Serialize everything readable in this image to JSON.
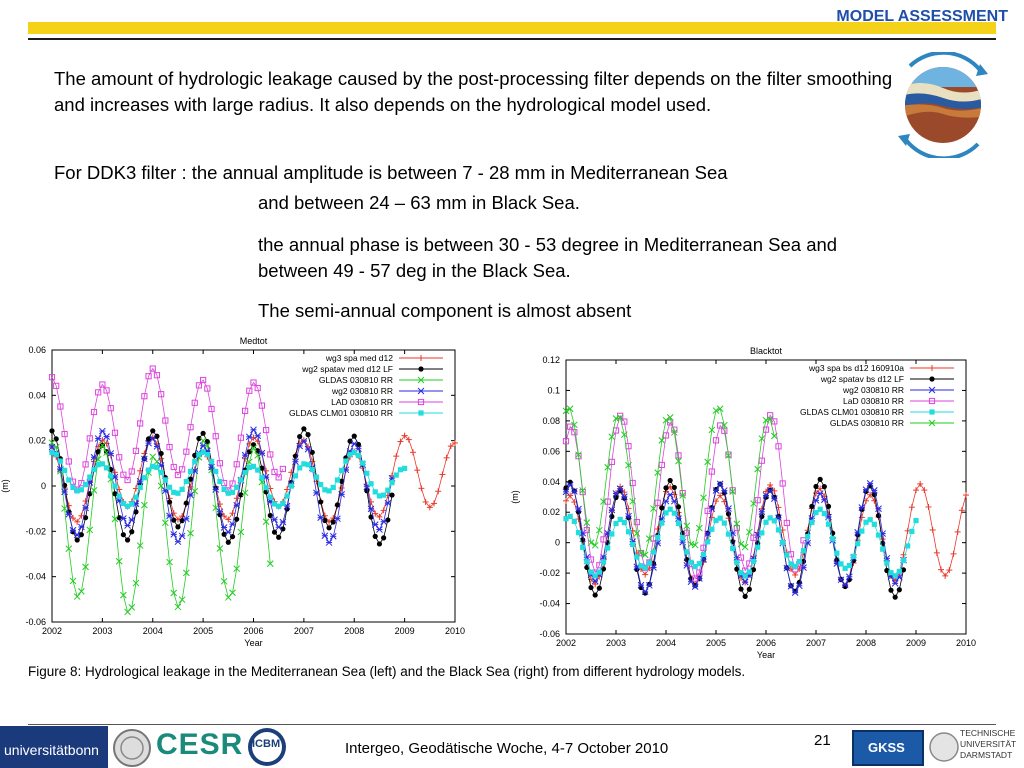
{
  "header": {
    "title": "MODEL ASSESSMENT"
  },
  "body": {
    "para1": "The amount of hydrologic leakage caused by the post-processing filter depends on the filter smoothing and increases with large radius. It also depends on the hydrological model used.",
    "para2a": "For DDK3 filter : the annual amplitude is between 7 - 28 mm in Mediterranean Sea",
    "para2b": "and between 24 – 63 mm in Black Sea.",
    "para3": "the annual phase is between 30 - 53 degree in Mediterranean Sea and between 49 - 57 deg in the Black Sea.",
    "para4": "The semi-annual component is almost absent"
  },
  "caption": "Figure 8: Hydrological leakage in the Mediterranean Sea (left) and the Black Sea (right) from different hydrology models.",
  "footer": {
    "text": "Intergeo, Geodätische Woche, 4-7 October 2010",
    "page": "21",
    "logo_unibonn": "universitätbonn",
    "logo_cesr": "CESR",
    "logo_icbm": "ICBM",
    "logo_gksss": "GKSS",
    "logo_tu": [
      "TECHNISCHE",
      "UNIVERSITÄT",
      "DARMSTADT"
    ]
  },
  "chart_data": [
    {
      "type": "line",
      "title": "Medtot",
      "xlabel": "Year",
      "ylabel": "(m)",
      "xlim": [
        2002,
        2010
      ],
      "ylim": [
        -0.06,
        0.06
      ],
      "xticks": [
        "2002",
        "2003",
        "2004",
        "2005",
        "2006",
        "2007",
        "2008",
        "2009",
        "2010"
      ],
      "yticks": [
        "0.06",
        "0.04",
        "0.02",
        "0",
        "-0.02",
        "-0.04",
        "-0.06"
      ],
      "legend_position": "top-right",
      "series": [
        {
          "name": "wg3 spa med d12",
          "color": "#e8392a",
          "marker": "plus",
          "start": 2002.0,
          "end": 2010.0,
          "amp": 0.016,
          "phase": 0.0,
          "offset": 0.003
        },
        {
          "name": "wg2 spatav med d12 LF",
          "color": "#000000",
          "marker": "dot",
          "start": 2002.0,
          "end": 2008.8,
          "amp": 0.022,
          "phase": 0.0,
          "offset": 0.0
        },
        {
          "name": "GLDAS 030810 RR",
          "color": "#22cc22",
          "marker": "x",
          "start": 2002.0,
          "end": 2006.4,
          "amp": 0.035,
          "phase": 0.02,
          "offset": -0.018
        },
        {
          "name": "wg2 030810 RR",
          "color": "#2a2ae0",
          "marker": "star",
          "start": 2002.0,
          "end": 2008.8,
          "amp": 0.021,
          "phase": 0.0,
          "offset": 0.0
        },
        {
          "name": "LAD 030810 RR",
          "color": "#dd44dd",
          "marker": "square",
          "start": 2002.0,
          "end": 2006.6,
          "amp": 0.023,
          "phase": 0.0,
          "offset": 0.025
        },
        {
          "name": "GLDAS CLM01 030810 RR",
          "color": "#22dddd",
          "marker": "filled-square",
          "start": 2002.0,
          "end": 2009.0,
          "amp": 0.008,
          "phase": 0.0,
          "offset": 0.003
        }
      ]
    },
    {
      "type": "line",
      "title": "Blacktot",
      "xlabel": "Year",
      "ylabel": "(m)",
      "xlim": [
        2002,
        2010
      ],
      "ylim": [
        -0.06,
        0.12
      ],
      "xticks": [
        "2002",
        "2003",
        "2004",
        "2005",
        "2006",
        "2007",
        "2008",
        "2009",
        "2010"
      ],
      "yticks": [
        "0.12",
        "0.1",
        "0.08",
        "0.06",
        "0.04",
        "0.02",
        "0",
        "-0.02",
        "-0.04",
        "-0.06"
      ],
      "legend_position": "top-right",
      "series": [
        {
          "name": "wg3 spa bs d12 160910a",
          "color": "#e8392a",
          "marker": "plus",
          "start": 2002.0,
          "end": 2010.0,
          "amp": 0.03,
          "phase": 0.08,
          "offset": 0.005
        },
        {
          "name": "wg2 spatav bs d12 LF",
          "color": "#000000",
          "marker": "dot",
          "start": 2002.0,
          "end": 2008.8,
          "amp": 0.035,
          "phase": 0.08,
          "offset": 0.003
        },
        {
          "name": "wg2 030810 RR",
          "color": "#2a2ae0",
          "marker": "star",
          "start": 2002.0,
          "end": 2008.8,
          "amp": 0.032,
          "phase": 0.08,
          "offset": 0.003
        },
        {
          "name": "LaD 030810 RR",
          "color": "#dd44dd",
          "marker": "square",
          "start": 2002.0,
          "end": 2006.8,
          "amp": 0.05,
          "phase": 0.1,
          "offset": 0.03
        },
        {
          "name": "GLDAS CLM01 030810 RR",
          "color": "#22dddd",
          "marker": "filled-square",
          "start": 2002.0,
          "end": 2009.0,
          "amp": 0.018,
          "phase": 0.08,
          "offset": 0.0
        },
        {
          "name": "GLDAS 030810 RR",
          "color": "#22cc22",
          "marker": "x",
          "start": 2002.0,
          "end": 2006.2,
          "amp": 0.045,
          "phase": 0.05,
          "offset": 0.04
        }
      ]
    }
  ]
}
